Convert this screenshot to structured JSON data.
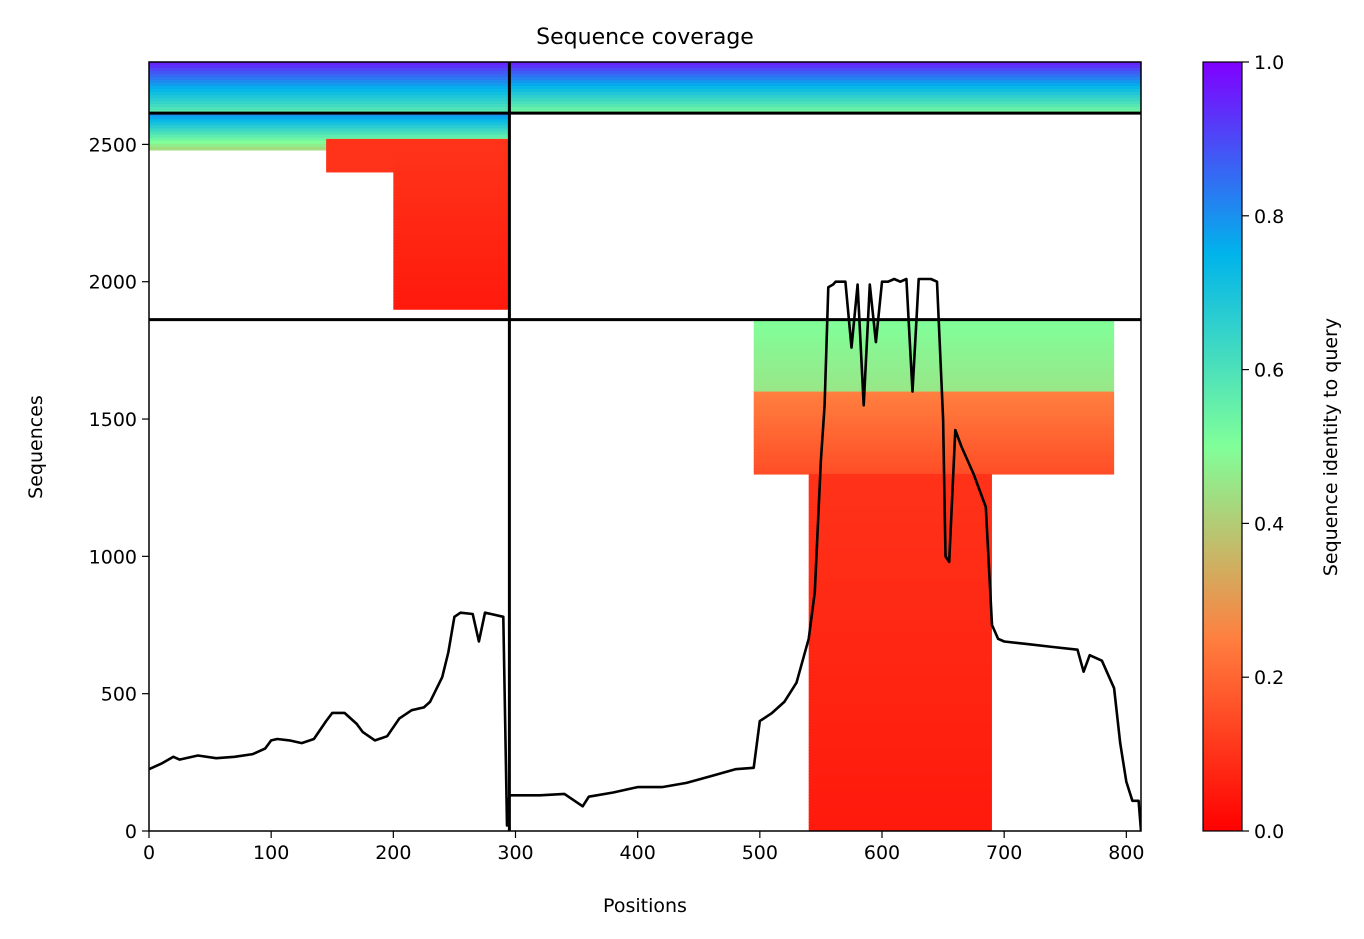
{
  "chart_data": {
    "type": "heatmap",
    "title": "Sequence coverage",
    "xlabel": "Positions",
    "ylabel": "Sequences",
    "xlim": [
      0,
      812
    ],
    "ylim": [
      0,
      2800
    ],
    "x_ticks": [
      0,
      100,
      200,
      300,
      400,
      500,
      600,
      700,
      800
    ],
    "y_ticks": [
      0,
      500,
      1000,
      1500,
      2000,
      2500
    ],
    "colorbar": {
      "label": "Sequence identity to query",
      "range": [
        0.0,
        1.0
      ],
      "ticks": [
        "0.0",
        "0.2",
        "0.4",
        "0.6",
        "0.8",
        "1.0"
      ],
      "colormap": "rainbow_r",
      "stops": [
        "#ff0000",
        "#ff7f3f",
        "#80ff99",
        "#00b4eb",
        "#8000ff"
      ]
    },
    "dividers": {
      "vertical_x": 295,
      "horizontal_y": [
        1862,
        2614
      ]
    },
    "coverage_blocks": [
      {
        "x": [
          0,
          295
        ],
        "y": [
          2614,
          2800
        ],
        "identity": [
          0.55,
          0.95
        ]
      },
      {
        "x": [
          295,
          812
        ],
        "y": [
          2614,
          2800
        ],
        "identity": [
          0.5,
          0.95
        ]
      },
      {
        "x": [
          0,
          295
        ],
        "y": [
          2480,
          2614
        ],
        "identity": [
          0.4,
          0.8
        ]
      },
      {
        "x": [
          145,
          295
        ],
        "y": [
          2400,
          2520
        ],
        "identity": [
          0.1,
          0.1
        ]
      },
      {
        "x": [
          200,
          295
        ],
        "y": [
          1900,
          2480
        ],
        "identity": [
          0.05,
          0.1
        ]
      },
      {
        "x": [
          495,
          790
        ],
        "y": [
          1600,
          1862
        ],
        "identity": [
          0.45,
          0.5
        ]
      },
      {
        "x": [
          495,
          790
        ],
        "y": [
          1300,
          1600
        ],
        "identity": [
          0.15,
          0.25
        ]
      },
      {
        "x": [
          540,
          690
        ],
        "y": [
          0,
          1300
        ],
        "identity": [
          0.05,
          0.1
        ]
      }
    ],
    "series": [
      {
        "name": "coverage",
        "color": "#000000",
        "x": [
          0,
          10,
          20,
          25,
          40,
          55,
          70,
          85,
          95,
          100,
          105,
          115,
          125,
          135,
          145,
          150,
          160,
          170,
          175,
          185,
          195,
          205,
          215,
          225,
          230,
          240,
          245,
          250,
          255,
          265,
          270,
          275,
          280,
          290,
          293,
          295,
          296,
          300,
          320,
          340,
          355,
          360,
          380,
          400,
          420,
          440,
          460,
          480,
          495,
          500,
          510,
          520,
          530,
          540,
          545,
          550,
          553,
          556,
          560,
          562,
          570,
          575,
          580,
          585,
          590,
          595,
          600,
          605,
          610,
          615,
          620,
          625,
          630,
          640,
          645,
          650,
          652,
          655,
          660,
          665,
          675,
          685,
          690,
          695,
          700,
          720,
          740,
          760,
          765,
          770,
          780,
          790,
          795,
          800,
          805,
          810,
          812
        ],
        "y": [
          225,
          245,
          270,
          260,
          275,
          265,
          270,
          280,
          300,
          330,
          335,
          330,
          320,
          335,
          400,
          430,
          430,
          390,
          360,
          330,
          345,
          410,
          440,
          450,
          470,
          560,
          650,
          780,
          795,
          790,
          690,
          795,
          790,
          780,
          20,
          130,
          130,
          130,
          130,
          135,
          90,
          125,
          140,
          160,
          160,
          175,
          200,
          225,
          230,
          400,
          430,
          470,
          540,
          700,
          870,
          1350,
          1550,
          1980,
          1990,
          2000,
          2000,
          1760,
          1990,
          1550,
          1990,
          1780,
          2000,
          2000,
          2010,
          2000,
          2010,
          1600,
          2010,
          2010,
          2000,
          1500,
          1000,
          980,
          1460,
          1400,
          1300,
          1180,
          750,
          700,
          690,
          680,
          670,
          660,
          580,
          640,
          620,
          520,
          320,
          180,
          110,
          110,
          0
        ]
      }
    ]
  }
}
